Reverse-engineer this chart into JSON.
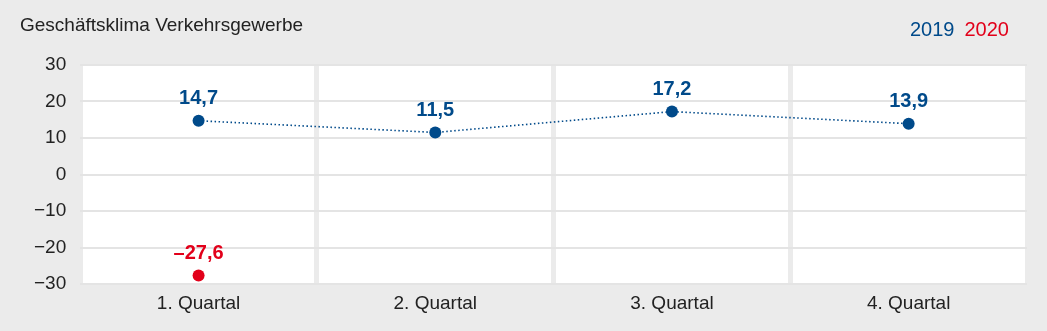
{
  "chart_data": {
    "type": "line",
    "title": "Geschäftsklima Verkehrsgewerbe",
    "categories": [
      "1. Quartal",
      "2. Quartal",
      "3. Quartal",
      "4. Quartal"
    ],
    "series": [
      {
        "name": "2019",
        "color": "#004a8a",
        "values": [
          14.7,
          11.5,
          17.2,
          13.9
        ],
        "value_labels": [
          "14,7",
          "11,5",
          "17,2",
          "13,9"
        ],
        "line_style": "dotted"
      },
      {
        "name": "2020",
        "color": "#e2001a",
        "values": [
          -27.6,
          null,
          null,
          null
        ],
        "value_labels": [
          "–27,6",
          null,
          null,
          null
        ]
      }
    ],
    "ylim": [
      -30,
      30
    ],
    "yticks": [
      -30,
      -20,
      -10,
      0,
      10,
      20,
      30
    ],
    "grid": true,
    "legend": "top right",
    "marker": "circle"
  }
}
